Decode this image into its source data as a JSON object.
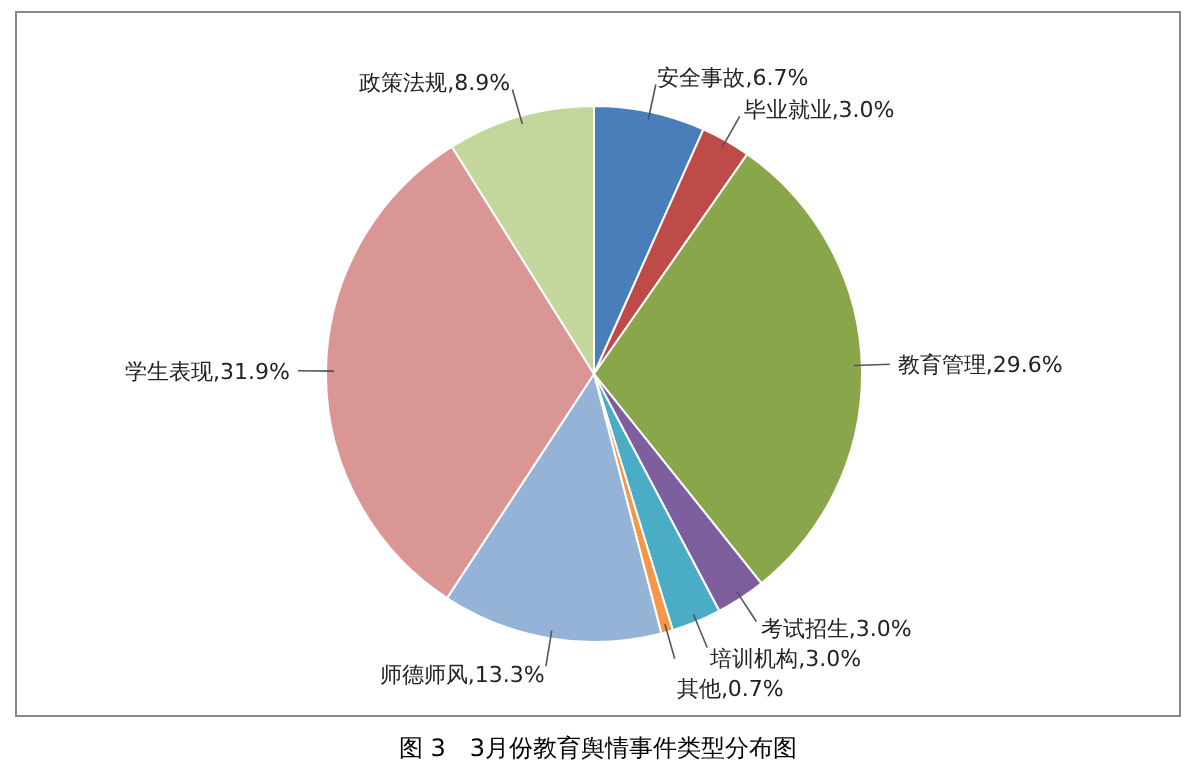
{
  "chart_data": {
    "type": "pie",
    "title": "图 3　3月份教育舆情事件类型分布图",
    "categories": [
      "安全事故",
      "毕业就业",
      "教育管理",
      "考试招生",
      "培训机构",
      "其他",
      "师德师风",
      "学生表现",
      "政策法规"
    ],
    "values": [
      6.7,
      3.0,
      29.6,
      3.0,
      3.0,
      0.7,
      13.3,
      31.9,
      8.9
    ],
    "value_labels": [
      "6.7%",
      "3.0%",
      "29.6%",
      "3.0%",
      "3.0%",
      "0.7%",
      "13.3%",
      "31.9%",
      "8.9%"
    ],
    "colors": [
      "#4a7ebb",
      "#be4b48",
      "#8aa64a",
      "#7d5f9f",
      "#4aacc5",
      "#f79646",
      "#95b3d7",
      "#d99694",
      "#c3d69b"
    ],
    "legend": false
  }
}
